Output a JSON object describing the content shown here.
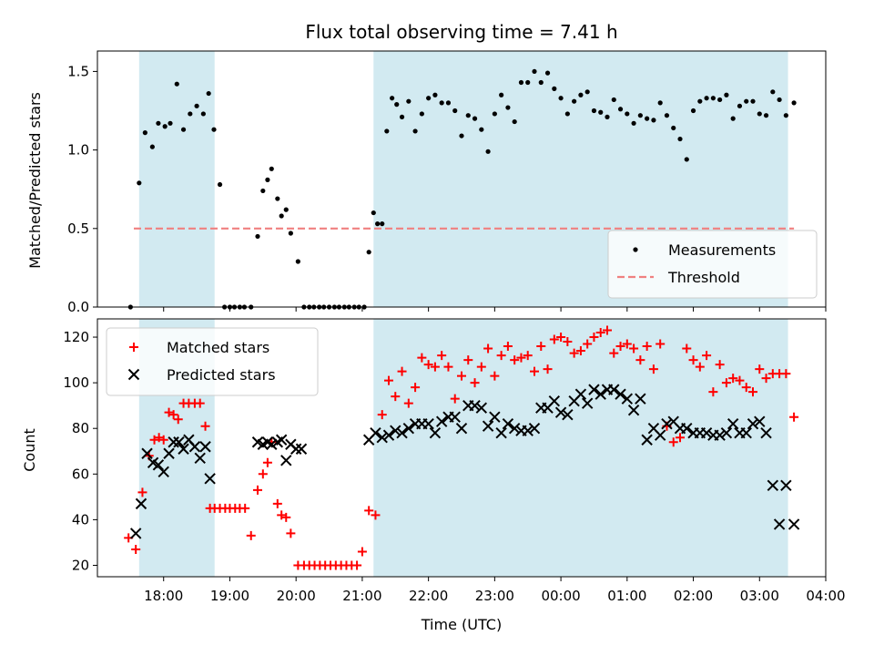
{
  "chart_data": [
    {
      "type": "scatter",
      "title": "Flux total observing time = 7.41 h",
      "xlabel": "",
      "ylabel": "Matched/Predicted stars",
      "xlim": [
        17.0,
        28.0
      ],
      "ylim": [
        0,
        1.63
      ],
      "y_ticks": [
        0.0,
        0.5,
        1.0,
        1.5
      ],
      "y_tick_labels": [
        "0.0",
        "0.5",
        "1.0",
        "1.5"
      ],
      "legend_position": "lower right",
      "shaded_intervals": [
        [
          17.63,
          18.77
        ],
        [
          21.17,
          27.43
        ]
      ],
      "shade_color": "#add8e6",
      "threshold": {
        "name": "Threshold",
        "y": 0.5,
        "x": [
          17.55,
          27.52
        ],
        "color": "#f08080"
      },
      "series": [
        {
          "name": "Measurements",
          "color": "#000000",
          "marker": "dot",
          "x": [
            17.5,
            17.63,
            17.72,
            17.83,
            17.92,
            18.02,
            18.1,
            18.2,
            18.3,
            18.4,
            18.5,
            18.6,
            18.68,
            18.76,
            18.85,
            18.92,
            19.0,
            19.07,
            19.15,
            19.22,
            19.32,
            19.42,
            19.5,
            19.57,
            19.63,
            19.72,
            19.78,
            19.85,
            19.92,
            20.03,
            20.12,
            20.2,
            20.27,
            20.35,
            20.42,
            20.5,
            20.58,
            20.65,
            20.73,
            20.8,
            20.88,
            20.95,
            21.03,
            21.1,
            21.17,
            21.23,
            21.3,
            21.37,
            21.45,
            21.52,
            21.6,
            21.7,
            21.8,
            21.9,
            22.0,
            22.1,
            22.2,
            22.3,
            22.4,
            22.5,
            22.6,
            22.7,
            22.8,
            22.9,
            23.0,
            23.1,
            23.2,
            23.3,
            23.4,
            23.5,
            23.6,
            23.7,
            23.8,
            23.9,
            24.0,
            24.1,
            24.2,
            24.3,
            24.4,
            24.5,
            24.6,
            24.7,
            24.8,
            24.9,
            25.0,
            25.1,
            25.2,
            25.3,
            25.4,
            25.5,
            25.6,
            25.7,
            25.8,
            25.9,
            26.0,
            26.1,
            26.2,
            26.3,
            26.4,
            26.5,
            26.6,
            26.7,
            26.8,
            26.9,
            27.0,
            27.1,
            27.2,
            27.3,
            27.4,
            27.52
          ],
          "y": [
            0.0,
            0.79,
            1.11,
            1.02,
            1.17,
            1.15,
            1.17,
            1.42,
            1.13,
            1.23,
            1.28,
            1.23,
            1.36,
            1.13,
            0.78,
            0.0,
            0.0,
            0.0,
            0.0,
            0.0,
            0.0,
            0.45,
            0.74,
            0.81,
            0.88,
            0.69,
            0.58,
            0.62,
            0.47,
            0.29,
            0.0,
            0.0,
            0.0,
            0.0,
            0.0,
            0.0,
            0.0,
            0.0,
            0.0,
            0.0,
            0.0,
            0.0,
            0.0,
            0.35,
            0.6,
            0.53,
            0.53,
            1.12,
            1.33,
            1.29,
            1.21,
            1.31,
            1.12,
            1.23,
            1.33,
            1.35,
            1.3,
            1.3,
            1.25,
            1.09,
            1.22,
            1.2,
            1.13,
            0.99,
            1.23,
            1.35,
            1.27,
            1.18,
            1.43,
            1.43,
            1.5,
            1.43,
            1.49,
            1.39,
            1.33,
            1.23,
            1.31,
            1.35,
            1.37,
            1.25,
            1.24,
            1.21,
            1.32,
            1.26,
            1.23,
            1.17,
            1.22,
            1.2,
            1.19,
            1.3,
            1.22,
            1.14,
            1.07,
            0.94,
            1.25,
            1.31,
            1.33,
            1.33,
            1.32,
            1.35,
            1.2,
            1.28,
            1.31,
            1.31,
            1.23,
            1.22,
            1.37,
            1.32,
            1.22,
            1.3
          ]
        }
      ]
    },
    {
      "type": "scatter",
      "title": "",
      "xlabel": "Time (UTC)",
      "ylabel": "Count",
      "xlim": [
        17.0,
        28.0
      ],
      "ylim": [
        15,
        128
      ],
      "y_ticks": [
        20,
        40,
        60,
        80,
        100,
        120
      ],
      "y_tick_labels": [
        "20",
        "40",
        "60",
        "80",
        "100",
        "120"
      ],
      "x_ticks": [
        18,
        19,
        20,
        21,
        22,
        23,
        24,
        25,
        26,
        27,
        28
      ],
      "x_tick_labels": [
        "18:00",
        "19:00",
        "20:00",
        "21:00",
        "22:00",
        "23:00",
        "00:00",
        "01:00",
        "02:00",
        "03:00",
        "04:00"
      ],
      "legend_position": "upper left",
      "shaded_intervals": [
        [
          17.63,
          18.77
        ],
        [
          21.17,
          27.43
        ]
      ],
      "shade_color": "#add8e6",
      "series": [
        {
          "name": "Matched stars",
          "color": "#ff0000",
          "marker": "plus",
          "x": [
            17.47,
            17.58,
            17.68,
            17.78,
            17.86,
            17.93,
            18.0,
            18.08,
            18.15,
            18.22,
            18.3,
            18.38,
            18.47,
            18.55,
            18.63,
            18.7,
            18.77,
            18.85,
            18.93,
            19.0,
            19.08,
            19.15,
            19.23,
            19.32,
            19.42,
            19.5,
            19.57,
            19.63,
            19.72,
            19.78,
            19.85,
            19.92,
            20.03,
            20.12,
            20.2,
            20.28,
            20.36,
            20.44,
            20.52,
            20.6,
            20.68,
            20.76,
            20.84,
            20.92,
            21.0,
            21.1,
            21.2,
            21.3,
            21.4,
            21.5,
            21.6,
            21.7,
            21.8,
            21.9,
            22.0,
            22.1,
            22.2,
            22.3,
            22.4,
            22.5,
            22.6,
            22.7,
            22.8,
            22.9,
            23.0,
            23.1,
            23.2,
            23.3,
            23.4,
            23.5,
            23.6,
            23.7,
            23.8,
            23.9,
            24.0,
            24.1,
            24.2,
            24.3,
            24.4,
            24.5,
            24.6,
            24.7,
            24.8,
            24.9,
            25.0,
            25.1,
            25.2,
            25.3,
            25.4,
            25.5,
            25.6,
            25.7,
            25.8,
            25.9,
            26.0,
            26.1,
            26.2,
            26.3,
            26.4,
            26.5,
            26.6,
            26.7,
            26.8,
            26.9,
            27.0,
            27.1,
            27.2,
            27.3,
            27.4,
            27.52
          ],
          "y": [
            32,
            27,
            52,
            68,
            75,
            76,
            75,
            87,
            86,
            84,
            91,
            91,
            91,
            91,
            81,
            45,
            45,
            45,
            45,
            45,
            45,
            45,
            45,
            33,
            53,
            60,
            65,
            74,
            47,
            42,
            41,
            34,
            20,
            20,
            20,
            20,
            20,
            20,
            20,
            20,
            20,
            20,
            20,
            20,
            26,
            44,
            42,
            86,
            101,
            94,
            105,
            91,
            98,
            111,
            108,
            107,
            112,
            107,
            93,
            103,
            110,
            100,
            107,
            115,
            103,
            112,
            116,
            110,
            111,
            112,
            105,
            116,
            106,
            119,
            120,
            118,
            113,
            114,
            117,
            120,
            122,
            123,
            113,
            116,
            117,
            115,
            110,
            116,
            106,
            117,
            81,
            74,
            76,
            115,
            110,
            107,
            112,
            96,
            108,
            100,
            102,
            101,
            98,
            96,
            106,
            102,
            104,
            104,
            104,
            85
          ]
        },
        {
          "name": "Predicted stars",
          "color": "#000000",
          "marker": "x",
          "x": [
            17.58,
            17.66,
            17.75,
            17.84,
            17.92,
            18.0,
            18.08,
            18.15,
            18.23,
            18.3,
            18.38,
            18.47,
            18.55,
            18.63,
            18.7,
            19.42,
            19.5,
            19.57,
            19.63,
            19.72,
            19.78,
            19.85,
            19.92,
            20.0,
            20.08,
            21.1,
            21.2,
            21.3,
            21.4,
            21.5,
            21.6,
            21.7,
            21.8,
            21.9,
            22.0,
            22.1,
            22.2,
            22.3,
            22.4,
            22.5,
            22.6,
            22.7,
            22.8,
            22.9,
            23.0,
            23.1,
            23.2,
            23.3,
            23.4,
            23.5,
            23.6,
            23.7,
            23.8,
            23.9,
            24.0,
            24.1,
            24.2,
            24.3,
            24.4,
            24.5,
            24.6,
            24.7,
            24.8,
            24.9,
            25.0,
            25.1,
            25.2,
            25.3,
            25.4,
            25.5,
            25.6,
            25.7,
            25.8,
            25.9,
            26.0,
            26.1,
            26.2,
            26.3,
            26.4,
            26.5,
            26.6,
            26.7,
            26.8,
            26.9,
            27.0,
            27.1,
            27.2,
            27.3,
            27.4,
            27.52
          ],
          "y": [
            34,
            47,
            69,
            65,
            64,
            61,
            69,
            74,
            74,
            71,
            75,
            72,
            67,
            72,
            58,
            74,
            73,
            74,
            73,
            74,
            75,
            66,
            73,
            71,
            71,
            75,
            78,
            76,
            77,
            79,
            78,
            80,
            82,
            82,
            82,
            78,
            83,
            85,
            85,
            80,
            90,
            90,
            89,
            81,
            85,
            78,
            82,
            80,
            79,
            79,
            80,
            89,
            89,
            92,
            87,
            86,
            92,
            95,
            91,
            97,
            95,
            97,
            97,
            95,
            93,
            88,
            93,
            75,
            80,
            77,
            82,
            83,
            80,
            80,
            78,
            78,
            78,
            77,
            77,
            78,
            82,
            78,
            78,
            82,
            83,
            78,
            55,
            38,
            55,
            38
          ]
        }
      ]
    }
  ]
}
